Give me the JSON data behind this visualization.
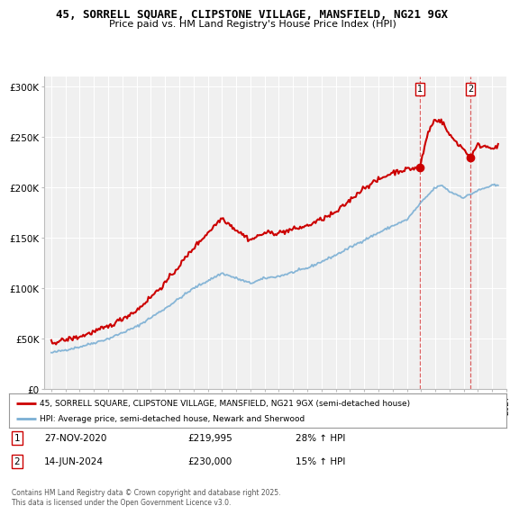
{
  "title1": "45, SORRELL SQUARE, CLIPSTONE VILLAGE, MANSFIELD, NG21 9GX",
  "title2": "Price paid vs. HM Land Registry's House Price Index (HPI)",
  "background_color": "#ffffff",
  "plot_bg_color": "#f0f0f0",
  "grid_color": "#ffffff",
  "red_color": "#cc0000",
  "blue_color": "#7bafd4",
  "transactions": [
    {
      "date_num": 2020.91,
      "price": 219995,
      "label": "1"
    },
    {
      "date_num": 2024.46,
      "price": 230000,
      "label": "2"
    }
  ],
  "legend_entries": [
    "45, SORRELL SQUARE, CLIPSTONE VILLAGE, MANSFIELD, NG21 9GX (semi-detached house)",
    "HPI: Average price, semi-detached house, Newark and Sherwood"
  ],
  "table_rows": [
    {
      "num": "1",
      "date": "27-NOV-2020",
      "price": "£219,995",
      "hpi": "28% ↑ HPI"
    },
    {
      "num": "2",
      "date": "14-JUN-2024",
      "price": "£230,000",
      "hpi": "15% ↑ HPI"
    }
  ],
  "footer": "Contains HM Land Registry data © Crown copyright and database right 2025.\nThis data is licensed under the Open Government Licence v3.0.",
  "ylim": [
    0,
    310000
  ],
  "xlim": [
    1994.5,
    2027.0
  ],
  "yticks": [
    0,
    50000,
    100000,
    150000,
    200000,
    250000,
    300000
  ],
  "ylabels": [
    "£0",
    "£50K",
    "£100K",
    "£150K",
    "£200K",
    "£250K",
    "£300K"
  ]
}
